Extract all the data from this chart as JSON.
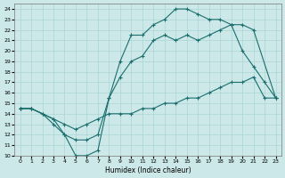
{
  "xlabel": "Humidex (Indice chaleur)",
  "background_color": "#cce8e8",
  "grid_color": "#aad4d4",
  "line_color": "#1a6e6e",
  "xlim": [
    -0.5,
    23.5
  ],
  "ylim": [
    10,
    24.5
  ],
  "xticks": [
    0,
    1,
    2,
    3,
    4,
    5,
    6,
    7,
    8,
    9,
    10,
    11,
    12,
    13,
    14,
    15,
    16,
    17,
    18,
    19,
    20,
    21,
    22,
    23
  ],
  "yticks": [
    10,
    11,
    12,
    13,
    14,
    15,
    16,
    17,
    18,
    19,
    20,
    21,
    22,
    23,
    24
  ],
  "line1_x": [
    0,
    1,
    2,
    3,
    4,
    5,
    6,
    7,
    8,
    9,
    10,
    11,
    12,
    13,
    14,
    15,
    16,
    17,
    18,
    19,
    20,
    21,
    22,
    23
  ],
  "line1_y": [
    14.5,
    14.5,
    14.0,
    13.5,
    13.0,
    12.5,
    13.0,
    13.5,
    14.0,
    14.0,
    14.0,
    14.5,
    14.5,
    15.0,
    15.0,
    15.5,
    15.5,
    16.0,
    16.5,
    17.0,
    17.0,
    17.5,
    15.5,
    15.5
  ],
  "line2_x": [
    0,
    1,
    3,
    4,
    5,
    6,
    7,
    8,
    9,
    10,
    11,
    12,
    13,
    14,
    15,
    16,
    17,
    18,
    19,
    20,
    21,
    23
  ],
  "line2_y": [
    14.5,
    14.5,
    13.5,
    12.0,
    10.0,
    10.0,
    10.5,
    15.5,
    19.0,
    21.5,
    21.5,
    22.5,
    23.0,
    24.0,
    24.0,
    23.5,
    23.0,
    23.0,
    22.5,
    22.5,
    22.0,
    15.5
  ],
  "line3_x": [
    0,
    1,
    2,
    3,
    4,
    5,
    6,
    7,
    8,
    9,
    10,
    11,
    12,
    13,
    14,
    15,
    16,
    17,
    18,
    19,
    20,
    21,
    22,
    23
  ],
  "line3_y": [
    14.5,
    14.5,
    14.0,
    13.0,
    12.0,
    11.5,
    11.5,
    12.0,
    15.5,
    17.5,
    19.0,
    19.5,
    21.0,
    21.5,
    21.0,
    21.5,
    21.0,
    21.5,
    22.0,
    22.5,
    20.0,
    18.5,
    17.0,
    15.5
  ]
}
